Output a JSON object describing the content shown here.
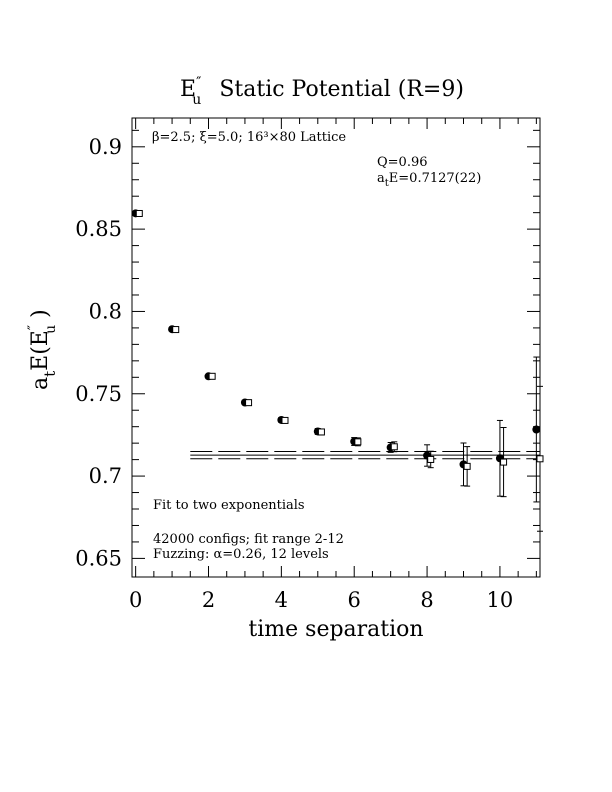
{
  "chart_data": {
    "type": "scatter",
    "title": "E″u  Static Potential (R=9)",
    "title_parts": {
      "main": "E",
      "sup": "″",
      "sub": "u",
      "rest": "Static Potential (R=9)"
    },
    "xlabel": "time separation",
    "ylabel": "at E(E″u )",
    "ylabel_parts": {
      "a": "a",
      "t": "t",
      "mid": "E(E",
      "sup": "″",
      "sub": "u",
      "end": " )"
    },
    "xlim": [
      -0.1,
      11.1
    ],
    "ylim": [
      0.6387,
      0.9175
    ],
    "xticks": [
      0,
      2,
      4,
      6,
      8,
      10
    ],
    "xtick_labels": [
      "0",
      "2",
      "4",
      "6",
      "8",
      "10"
    ],
    "yticks": [
      0.65,
      0.7,
      0.75,
      0.8,
      0.85,
      0.9
    ],
    "ytick_labels": [
      "0.65",
      "0.7",
      "0.75",
      "0.8",
      "0.85",
      "0.9"
    ],
    "annotations": {
      "lattice": "β=2.5; ξ=5.0; 16³×80 Lattice",
      "q": "Q=0.96",
      "energy": "atE=0.7127(22)",
      "fit": "Fit to two exponentials",
      "configs": "42000 configs; fit range 2-12",
      "fuzz": "Fuzzing: α=0.26, 12 levels"
    },
    "series": [
      {
        "marker": "filled-circle",
        "x": [
          0,
          1,
          2,
          3,
          4,
          5,
          6,
          7,
          8,
          9,
          10,
          11
        ],
        "y": [
          0.8596,
          0.7892,
          0.7606,
          0.7447,
          0.7341,
          0.7271,
          0.721,
          0.7174,
          0.7125,
          0.7071,
          0.7108,
          0.7283
        ],
        "err": [
          0.0008,
          0.0009,
          0.001,
          0.0012,
          0.0015,
          0.0018,
          0.0024,
          0.003,
          0.0065,
          0.013,
          0.023,
          0.044
        ]
      },
      {
        "marker": "open-square",
        "x": [
          0.1,
          1.1,
          2.1,
          3.1,
          4.1,
          5.1,
          6.1,
          7.1,
          8.1,
          9.1,
          10.1,
          11.1
        ],
        "y": [
          0.8595,
          0.789,
          0.7606,
          0.7446,
          0.7338,
          0.7268,
          0.7208,
          0.7178,
          0.7101,
          0.7059,
          0.7085,
          0.7105
        ],
        "err": [
          0.0008,
          0.0009,
          0.001,
          0.0012,
          0.0015,
          0.0018,
          0.0024,
          0.003,
          0.005,
          0.012,
          0.021,
          0.044
        ]
      }
    ],
    "fit": {
      "value": 0.7127,
      "error": 0.0022,
      "x_start": 1.5,
      "x_end": 11.1
    }
  }
}
